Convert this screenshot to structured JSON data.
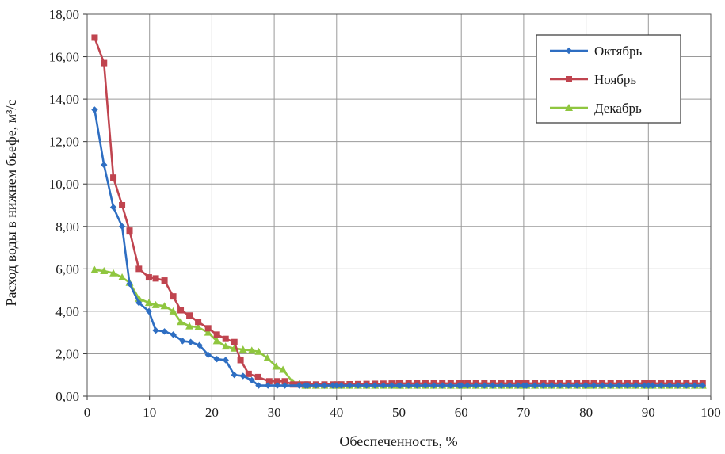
{
  "chart_data": {
    "type": "line",
    "title": "",
    "xlabel": "Обеспеченность, %",
    "ylabel": "Расход воды в нижнем бьефе, м³/с",
    "xlim": [
      0,
      100
    ],
    "ylim": [
      0,
      18
    ],
    "x_ticks": [
      "0",
      "10",
      "20",
      "30",
      "40",
      "50",
      "60",
      "70",
      "80",
      "90",
      "100"
    ],
    "y_ticks": [
      "0,00",
      "2,00",
      "4,00",
      "6,00",
      "8,00",
      "10,00",
      "12,00",
      "14,00",
      "16,00",
      "18,00"
    ],
    "grid": true,
    "legend_position": "top-right",
    "series": [
      {
        "name": "Октябрь",
        "color": "#2e6ec2",
        "marker": "diamond",
        "x": [
          1.2,
          2.7,
          4.2,
          5.6,
          6.8,
          8.3,
          9.9,
          11.0,
          12.4,
          13.8,
          15.3,
          16.6,
          18.0,
          19.4,
          20.8,
          22.2,
          23.6,
          25.0,
          26.4,
          27.5,
          29.0,
          30.5,
          31.7,
          35,
          40,
          50,
          60,
          70,
          80,
          90,
          98.7
        ],
        "y": [
          13.5,
          10.9,
          8.9,
          8.0,
          5.3,
          4.4,
          4.0,
          3.1,
          3.05,
          2.9,
          2.6,
          2.55,
          2.4,
          1.95,
          1.75,
          1.7,
          1.0,
          0.95,
          0.75,
          0.5,
          0.5,
          0.5,
          0.5,
          0.5,
          0.5,
          0.5,
          0.5,
          0.5,
          0.5,
          0.5,
          0.5
        ]
      },
      {
        "name": "Ноябрь",
        "color": "#c0444f",
        "marker": "square",
        "x": [
          1.2,
          2.7,
          4.2,
          5.6,
          6.8,
          8.3,
          9.9,
          11.0,
          12.4,
          13.8,
          15.0,
          16.4,
          17.8,
          19.4,
          20.8,
          22.2,
          23.6,
          24.6,
          25.9,
          27.4,
          29.2,
          30.5,
          31.7,
          33.0,
          35,
          40,
          50,
          60,
          70,
          80,
          90,
          98.7
        ],
        "y": [
          16.9,
          15.7,
          10.3,
          9.0,
          7.8,
          6.0,
          5.6,
          5.55,
          5.45,
          4.7,
          4.05,
          3.8,
          3.5,
          3.2,
          2.9,
          2.7,
          2.55,
          1.7,
          1.05,
          0.9,
          0.7,
          0.7,
          0.7,
          0.55,
          0.55,
          0.55,
          0.6,
          0.6,
          0.6,
          0.6,
          0.6,
          0.6
        ]
      },
      {
        "name": "Декабрь",
        "color": "#8fc63f",
        "marker": "triangle",
        "x": [
          1.2,
          2.7,
          4.2,
          5.6,
          6.8,
          8.3,
          9.9,
          11.0,
          12.4,
          13.8,
          15.0,
          16.4,
          17.8,
          19.4,
          20.8,
          22.2,
          23.6,
          25.0,
          26.4,
          27.5,
          28.9,
          30.3,
          31.4,
          33.0,
          35,
          40,
          50,
          60,
          70,
          80,
          90,
          98.7
        ],
        "y": [
          5.95,
          5.9,
          5.8,
          5.6,
          5.35,
          4.6,
          4.4,
          4.3,
          4.25,
          4.0,
          3.5,
          3.3,
          3.25,
          3.0,
          2.6,
          2.35,
          2.25,
          2.2,
          2.15,
          2.1,
          1.8,
          1.4,
          1.25,
          0.65,
          0.5,
          0.5,
          0.5,
          0.5,
          0.5,
          0.5,
          0.5,
          0.5
        ]
      }
    ]
  }
}
